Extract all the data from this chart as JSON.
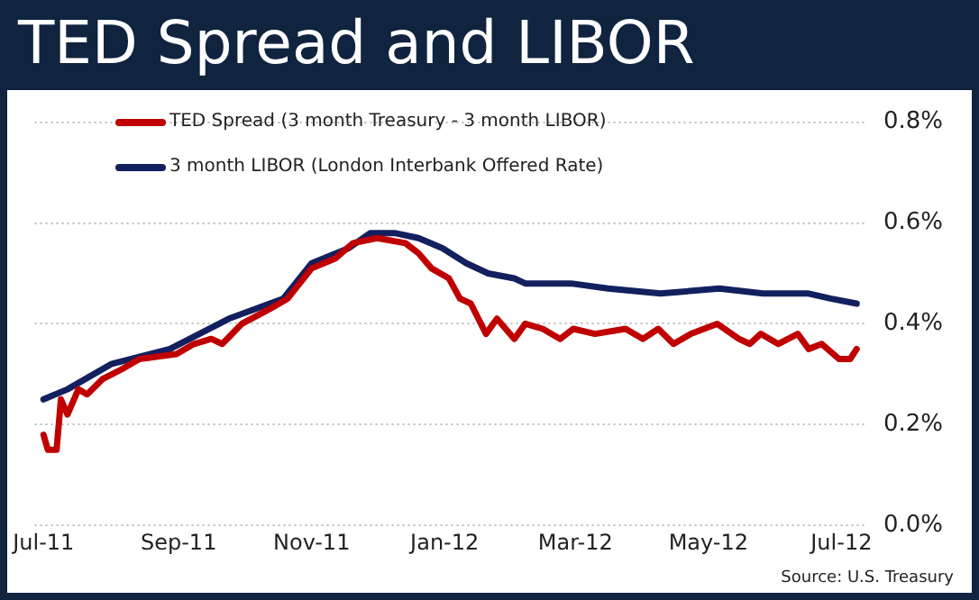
{
  "chart_data": {
    "type": "line",
    "title": "TED Spread and LIBOR",
    "annotations": [
      "Source: U.S. Treasury"
    ],
    "xlim": [
      "2011-06-27",
      "2012-07-12"
    ],
    "xticks": [
      {
        "value": "2011-07-01",
        "label": "Jul-11"
      },
      {
        "value": "2011-09-01",
        "label": "Sep-11"
      },
      {
        "value": "2011-11-01",
        "label": "Nov-11"
      },
      {
        "value": "2012-01-01",
        "label": "Jan-12"
      },
      {
        "value": "2012-03-01",
        "label": "Mar-12"
      },
      {
        "value": "2012-05-01",
        "label": "May-12"
      },
      {
        "value": "2012-07-01",
        "label": "Jul-12"
      }
    ],
    "ylim": [
      0,
      0.8
    ],
    "yticks": [
      {
        "value": 0,
        "label": "0.0%"
      },
      {
        "value": 0.2,
        "label": "0.2%"
      },
      {
        "value": 0.4,
        "label": "0.4%"
      },
      {
        "value": 0.6,
        "label": "0.6%"
      },
      {
        "value": 0.8,
        "label": "0.8%"
      }
    ],
    "grid": "y",
    "legend": "top left",
    "marker": "none",
    "line_style": "solid",
    "series": [
      {
        "name": "TED Spread (3 month Treasury - 3 month LIBOR)",
        "color": "#c00000",
        "x": [
          "2011-07-01",
          "2011-07-03",
          "2011-07-07",
          "2011-07-09",
          "2011-07-12",
          "2011-07-17",
          "2011-07-21",
          "2011-07-28",
          "2011-08-06",
          "2011-08-14",
          "2011-08-31",
          "2011-09-08",
          "2011-09-16",
          "2011-09-21",
          "2011-09-30",
          "2011-10-13",
          "2011-10-21",
          "2011-11-01",
          "2011-11-12",
          "2011-11-20",
          "2011-12-01",
          "2011-12-14",
          "2011-12-20",
          "2011-12-26",
          "2012-01-03",
          "2012-01-08",
          "2012-01-13",
          "2012-01-20",
          "2012-01-25",
          "2012-02-02",
          "2012-02-07",
          "2012-02-15",
          "2012-02-23",
          "2012-02-29",
          "2012-03-10",
          "2012-03-24",
          "2012-04-01",
          "2012-04-08",
          "2012-04-15",
          "2012-04-23",
          "2012-05-05",
          "2012-05-15",
          "2012-05-20",
          "2012-05-25",
          "2012-06-02",
          "2012-06-11",
          "2012-06-16",
          "2012-06-22",
          "2012-06-30",
          "2012-07-05",
          "2012-07-08"
        ],
        "values": [
          0.18,
          0.15,
          0.15,
          0.25,
          0.22,
          0.27,
          0.26,
          0.29,
          0.31,
          0.33,
          0.34,
          0.36,
          0.37,
          0.36,
          0.4,
          0.43,
          0.45,
          0.51,
          0.53,
          0.56,
          0.57,
          0.56,
          0.54,
          0.51,
          0.49,
          0.45,
          0.44,
          0.38,
          0.41,
          0.37,
          0.4,
          0.39,
          0.37,
          0.39,
          0.38,
          0.39,
          0.37,
          0.39,
          0.36,
          0.38,
          0.4,
          0.37,
          0.36,
          0.38,
          0.36,
          0.38,
          0.35,
          0.36,
          0.33,
          0.33,
          0.35
        ]
      },
      {
        "name": "3 month LIBOR (London Interbank Offered Rate)",
        "color": "#13205f",
        "x": [
          "2011-07-01",
          "2011-07-12",
          "2011-08-01",
          "2011-08-28",
          "2011-09-24",
          "2011-10-19",
          "2011-11-01",
          "2011-11-18",
          "2011-11-28",
          "2011-12-09",
          "2011-12-20",
          "2011-12-31",
          "2012-01-11",
          "2012-01-21",
          "2012-02-02",
          "2012-02-07",
          "2012-02-28",
          "2012-03-16",
          "2012-04-09",
          "2012-05-06",
          "2012-05-26",
          "2012-06-16",
          "2012-06-26",
          "2012-07-08"
        ],
        "values": [
          0.25,
          0.27,
          0.32,
          0.35,
          0.41,
          0.45,
          0.52,
          0.55,
          0.58,
          0.58,
          0.57,
          0.55,
          0.52,
          0.5,
          0.49,
          0.48,
          0.48,
          0.47,
          0.46,
          0.47,
          0.46,
          0.46,
          0.45,
          0.44
        ]
      }
    ]
  }
}
